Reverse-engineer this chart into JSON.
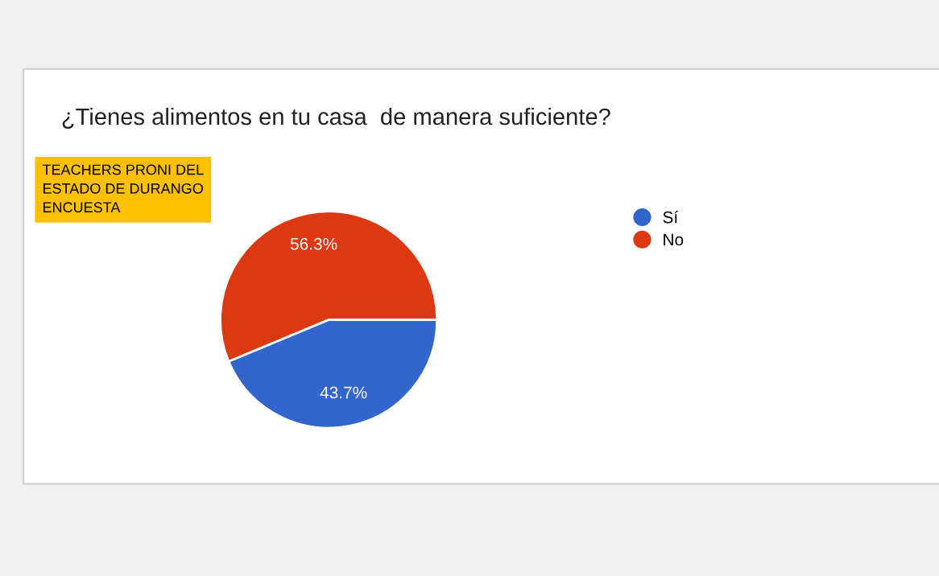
{
  "chart_data": {
    "type": "pie",
    "title": "¿Tienes alimentos en tu casa  de manera suficiente?",
    "categories": [
      "Sí",
      "No"
    ],
    "values": [
      43.7,
      56.3
    ],
    "colors": [
      "#3366cc",
      "#dc3912"
    ],
    "value_labels": [
      "43.7%",
      "56.3%"
    ],
    "legend": "right",
    "annotations": [
      "TEACHERS PRONI DEL\nESTADO DE DURANGO\nENCUESTA"
    ]
  }
}
